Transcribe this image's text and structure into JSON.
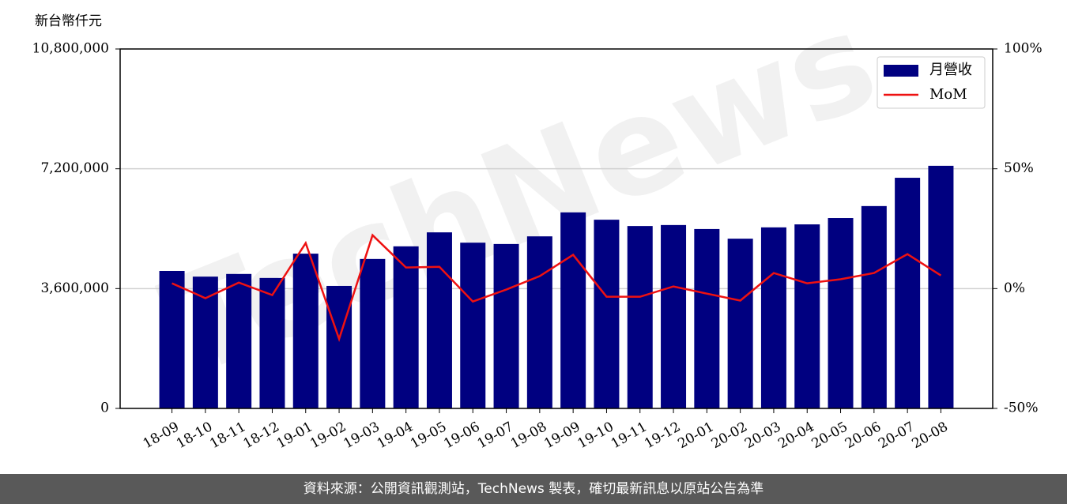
{
  "chart_data": {
    "type": "bar_line",
    "y_axis_label": "新台幣仟元",
    "watermark": "TechNews",
    "categories": [
      "18-09",
      "18-10",
      "18-11",
      "18-12",
      "19-01",
      "19-02",
      "19-03",
      "19-04",
      "19-05",
      "19-06",
      "19-07",
      "19-08",
      "19-09",
      "19-10",
      "19-11",
      "19-12",
      "20-01",
      "20-02",
      "20-03",
      "20-04",
      "20-05",
      "20-06",
      "20-07",
      "20-08"
    ],
    "series": [
      {
        "name": "月營收",
        "type": "bar",
        "color": "#000080",
        "values": [
          4130000,
          3960000,
          4040000,
          3920000,
          4650000,
          3680000,
          4490000,
          4870000,
          5290000,
          4980000,
          4940000,
          5170000,
          5890000,
          5670000,
          5480000,
          5510000,
          5390000,
          5100000,
          5440000,
          5530000,
          5720000,
          6080000,
          6930000,
          7290000
        ]
      },
      {
        "name": "MoM",
        "type": "line",
        "axis": "y2",
        "color": "#ee1111",
        "values": [
          2.2,
          -4,
          2.5,
          -2.7,
          19,
          -21,
          22.3,
          8.8,
          9.1,
          -5.4,
          -0.4,
          5.2,
          14.1,
          -3.4,
          -3.4,
          0.9,
          -2.1,
          -5.0,
          6.5,
          2.2,
          3.9,
          6.5,
          14.4,
          5.5
        ]
      }
    ],
    "ylim": [
      0,
      10800000
    ],
    "yticks": [
      0,
      {
        "value": 3600000,
        "label": "3,600,000"
      },
      {
        "value": 7200000,
        "label": "7,200,000"
      },
      {
        "value": 10800000,
        "label": "10,800,000"
      }
    ],
    "y2lim": [
      -50,
      100
    ],
    "y2ticks": [
      {
        "value": -50,
        "label": "-50%"
      },
      {
        "value": 0,
        "label": "0%"
      },
      {
        "value": 50,
        "label": "50%"
      },
      {
        "value": 100,
        "label": "100%"
      }
    ],
    "grid": true,
    "legend": "upper right"
  },
  "footer": "資料來源：公開資訊觀測站，TechNews 製表，確切最新訊息以原站公告為準"
}
